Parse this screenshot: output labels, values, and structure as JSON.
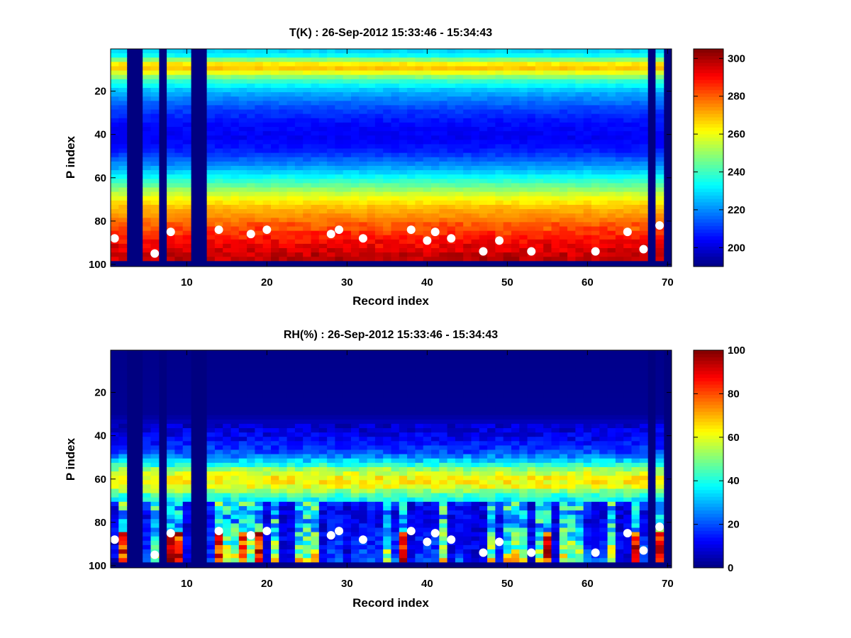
{
  "chart_data": [
    {
      "type": "heatmap",
      "title": "T(K) : 26-Sep-2012 15:33:46 - 15:34:43",
      "xlabel": "Record index",
      "ylabel": "P index",
      "xlim": [
        0.5,
        70.5
      ],
      "ylim": [
        0.5,
        101
      ],
      "xticks": [
        "10",
        "20",
        "30",
        "40",
        "50",
        "60",
        "70"
      ],
      "yticks": [
        "20",
        "40",
        "60",
        "80",
        "100"
      ],
      "colorbar": {
        "min": 190,
        "max": 305,
        "ticks": [
          "200",
          "220",
          "240",
          "260",
          "280",
          "300"
        ]
      },
      "missing_records": [
        3,
        4,
        7,
        11,
        12,
        68,
        70
      ],
      "fill_value": 190,
      "profile": [
        {
          "p": 0,
          "v": 225
        },
        {
          "p": 4,
          "v": 235
        },
        {
          "p": 7,
          "v": 262
        },
        {
          "p": 9,
          "v": 270
        },
        {
          "p": 11,
          "v": 262
        },
        {
          "p": 15,
          "v": 240
        },
        {
          "p": 20,
          "v": 225
        },
        {
          "p": 28,
          "v": 212
        },
        {
          "p": 35,
          "v": 205
        },
        {
          "p": 42,
          "v": 203
        },
        {
          "p": 48,
          "v": 208
        },
        {
          "p": 55,
          "v": 222
        },
        {
          "p": 62,
          "v": 240
        },
        {
          "p": 68,
          "v": 257
        },
        {
          "p": 74,
          "v": 270
        },
        {
          "p": 82,
          "v": 280
        },
        {
          "p": 90,
          "v": 290
        },
        {
          "p": 96,
          "v": 297
        }
      ],
      "surface_markers": [
        {
          "record": 1,
          "p": 88
        },
        {
          "record": 6,
          "p": 95
        },
        {
          "record": 8,
          "p": 85
        },
        {
          "record": 14,
          "p": 84
        },
        {
          "record": 18,
          "p": 86
        },
        {
          "record": 20,
          "p": 84
        },
        {
          "record": 28,
          "p": 86
        },
        {
          "record": 29,
          "p": 84
        },
        {
          "record": 32,
          "p": 88
        },
        {
          "record": 38,
          "p": 84
        },
        {
          "record": 40,
          "p": 89
        },
        {
          "record": 41,
          "p": 85
        },
        {
          "record": 43,
          "p": 88
        },
        {
          "record": 47,
          "p": 94
        },
        {
          "record": 49,
          "p": 89
        },
        {
          "record": 53,
          "p": 94
        },
        {
          "record": 61,
          "p": 94
        },
        {
          "record": 65,
          "p": 85
        },
        {
          "record": 67,
          "p": 93
        },
        {
          "record": 69,
          "p": 82
        }
      ]
    },
    {
      "type": "heatmap",
      "title": "RH(%) : 26-Sep-2012 15:33:46 - 15:34:43",
      "xlabel": "Record index",
      "ylabel": "P index",
      "xlim": [
        0.5,
        70.5
      ],
      "ylim": [
        0.5,
        101
      ],
      "xticks": [
        "10",
        "20",
        "30",
        "40",
        "50",
        "60",
        "70"
      ],
      "yticks": [
        "20",
        "40",
        "60",
        "80",
        "100"
      ],
      "colorbar": {
        "min": 0,
        "max": 100,
        "ticks": [
          "0",
          "20",
          "40",
          "60",
          "80",
          "100"
        ]
      },
      "missing_records": [
        3,
        4,
        7,
        11,
        12,
        68,
        70
      ],
      "fill_value": 0,
      "profile": [
        {
          "p": 0,
          "v": 1
        },
        {
          "p": 30,
          "v": 2
        },
        {
          "p": 36,
          "v": 8
        },
        {
          "p": 42,
          "v": 12
        },
        {
          "p": 48,
          "v": 20
        },
        {
          "p": 53,
          "v": 38
        },
        {
          "p": 56,
          "v": 55
        },
        {
          "p": 60,
          "v": 64
        },
        {
          "p": 64,
          "v": 60
        },
        {
          "p": 67,
          "v": 45
        },
        {
          "p": 71,
          "v": 34
        },
        {
          "p": 76,
          "v": 26
        },
        {
          "p": 82,
          "v": 28
        },
        {
          "p": 88,
          "v": 36
        },
        {
          "p": 93,
          "v": 44
        },
        {
          "p": 98,
          "v": 55
        }
      ],
      "surface_markers": [
        {
          "record": 1,
          "p": 88
        },
        {
          "record": 6,
          "p": 95
        },
        {
          "record": 8,
          "p": 85
        },
        {
          "record": 14,
          "p": 84
        },
        {
          "record": 18,
          "p": 86
        },
        {
          "record": 20,
          "p": 84
        },
        {
          "record": 28,
          "p": 86
        },
        {
          "record": 29,
          "p": 84
        },
        {
          "record": 32,
          "p": 88
        },
        {
          "record": 38,
          "p": 84
        },
        {
          "record": 40,
          "p": 89
        },
        {
          "record": 41,
          "p": 85
        },
        {
          "record": 43,
          "p": 88
        },
        {
          "record": 47,
          "p": 94
        },
        {
          "record": 49,
          "p": 89
        },
        {
          "record": 53,
          "p": 94
        },
        {
          "record": 61,
          "p": 94
        },
        {
          "record": 65,
          "p": 85
        },
        {
          "record": 67,
          "p": 93
        },
        {
          "record": 69,
          "p": 82
        }
      ]
    }
  ]
}
